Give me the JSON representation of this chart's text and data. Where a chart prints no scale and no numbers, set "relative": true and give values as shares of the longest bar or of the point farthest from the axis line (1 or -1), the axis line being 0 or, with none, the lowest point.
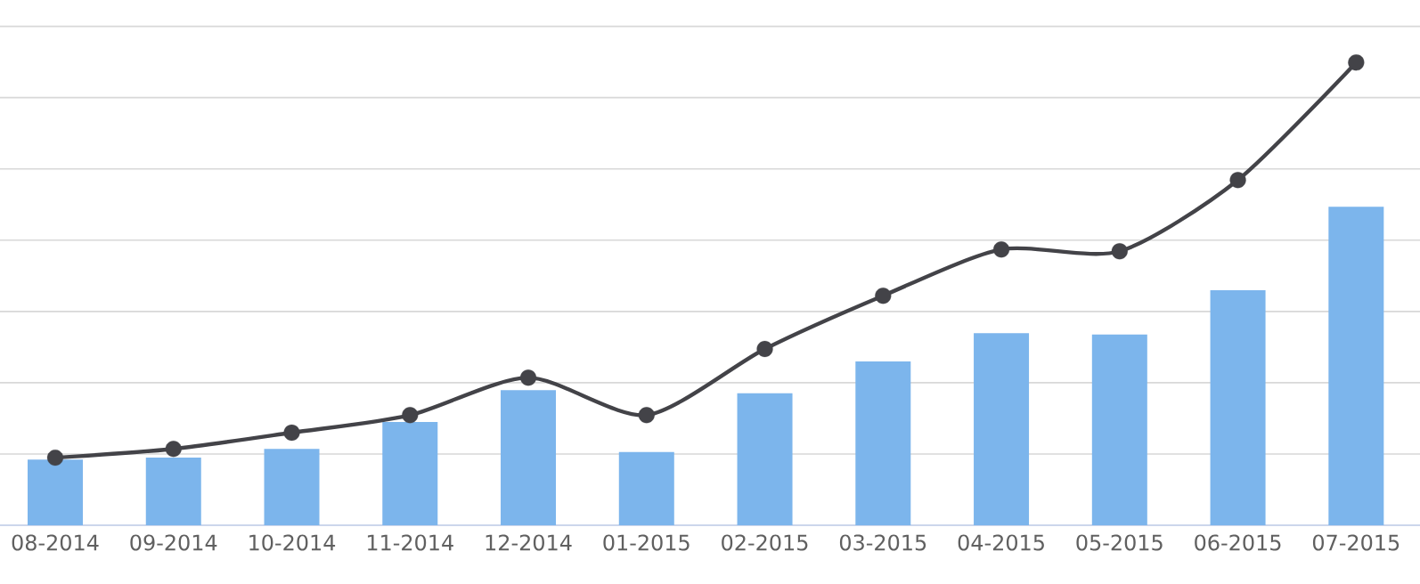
{
  "chart_data": {
    "type": "bar",
    "relative": true,
    "grid": "y",
    "marker": "circle",
    "categories": [
      "08-2014",
      "09-2014",
      "10-2014",
      "11-2014",
      "12-2014",
      "01-2015",
      "02-2015",
      "03-2015",
      "04-2015",
      "05-2015",
      "06-2015",
      "07-2015"
    ],
    "series": [
      {
        "color": "#7cb5ec",
        "values": [
          0.142,
          0.146,
          0.165,
          0.223,
          0.292,
          0.158,
          0.285,
          0.354,
          0.415,
          0.412,
          0.508,
          0.688
        ]
      },
      {
        "type": "line",
        "color": "#434348",
        "values": [
          0.146,
          0.165,
          0.2,
          0.238,
          0.319,
          0.238,
          0.381,
          0.496,
          0.596,
          0.592,
          0.746,
          1.0
        ]
      }
    ]
  }
}
